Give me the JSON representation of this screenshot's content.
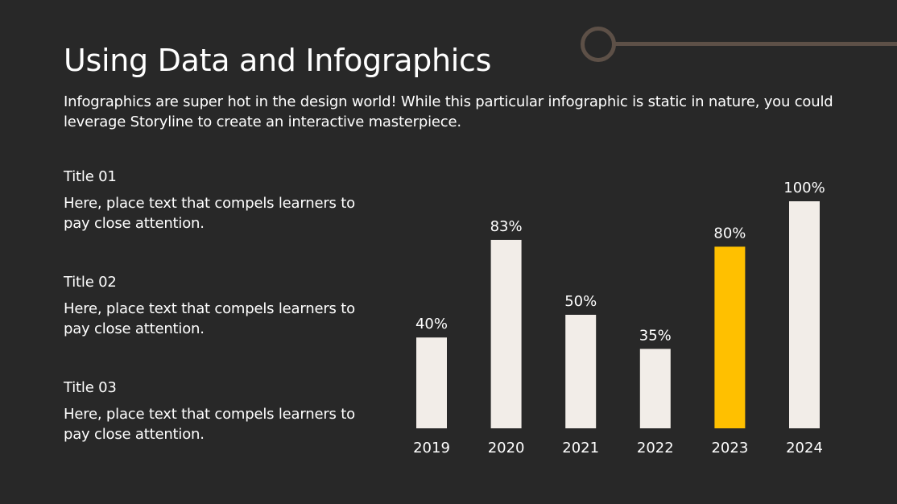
{
  "slide": {
    "title": "Using Data and Infographics",
    "intro": "Infographics are super hot in the design world! While this particular infographic is static in nature, you could leverage Storyline to create an interactive masterpiece."
  },
  "points": [
    {
      "title": "Title 01",
      "text": "Here, place text that compels learners to pay close attention."
    },
    {
      "title": "Title 02",
      "text": "Here, place text that compels learners to pay close attention."
    },
    {
      "title": "Title 03",
      "text": "Here, place text that compels learners to pay close attention."
    }
  ],
  "colors": {
    "background": "#282828",
    "bar": "#f2ede8",
    "highlight": "#ffc000",
    "decoration": "#5d5047"
  },
  "chart_data": {
    "type": "bar",
    "categories": [
      "2019",
      "2020",
      "2021",
      "2022",
      "2023",
      "2024"
    ],
    "values": [
      40,
      83,
      50,
      35,
      80,
      100
    ],
    "value_labels": [
      "40%",
      "83%",
      "50%",
      "35%",
      "80%",
      "100%"
    ],
    "highlight_category": "2023",
    "ylim": [
      0,
      100
    ],
    "grid": false
  }
}
